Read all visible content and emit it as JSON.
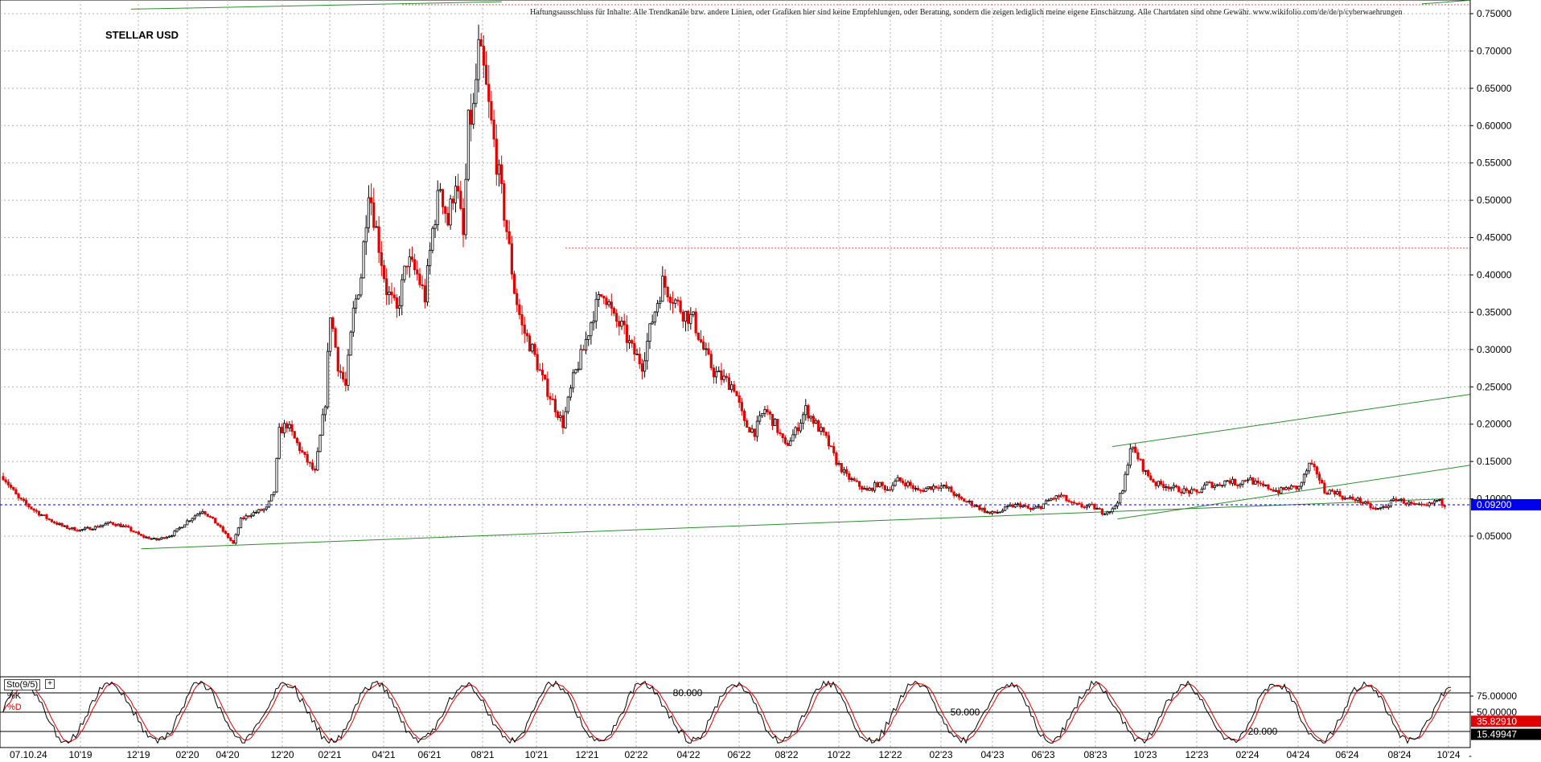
{
  "header": {
    "disclaimer": "Haftungsausschluss für Inhalte: Alle Trendkanäle bzw. andere Linien, oder Grafiken hier sind keine Empfehlungen, oder Beratung, sondern die zeigen lediglich meine eigene Einschätzung. Alle Chartdaten sind ohne Gewähr. www.wikifolio.com/de/de/p/cyberwaehrungen",
    "title": "STELLAR USD"
  },
  "colors": {
    "background": "#ffffff",
    "grid": "#b0b0b0",
    "up_candle": "#000000",
    "down_candle": "#e00000",
    "trendline": "#2e8b2e",
    "current_price_bg": "#0000ee",
    "current_price_line": "#0000ee",
    "stoch_k": "#000000",
    "stoch_d": "#e00000",
    "stoch_k_label_bg": "#e00000",
    "stoch_d_label_bg": "#000000",
    "resistance_line": "#e06060"
  },
  "chart_data": [
    {
      "type": "candlestick",
      "title": "STELLAR USD",
      "ylim": [
        0.025,
        0.765
      ],
      "y_ticks": [
        "0.75000",
        "0.70000",
        "0.65000",
        "0.60000",
        "0.55000",
        "0.50000",
        "0.45000",
        "0.40000",
        "0.35000",
        "0.30000",
        "0.25000",
        "0.20000",
        "0.15000",
        "0.10000",
        "0.05000"
      ],
      "x_ticks": [
        "07.10.24",
        "10'19",
        "12'19",
        "02'20",
        "04'20",
        "12'20",
        "02'21",
        "04'21",
        "06'21",
        "08'21",
        "10'21",
        "12'21",
        "02'22",
        "04'22",
        "06'22",
        "08'22",
        "10'22",
        "12'22",
        "02'23",
        "04'23",
        "06'23",
        "08'23",
        "10'23",
        "12'23",
        "02'24",
        "04'24",
        "06'24",
        "08'24",
        "10'24"
      ],
      "current_price": {
        "value": 0.092,
        "label": "0.09200"
      },
      "grid": true,
      "series_path_close": [
        [
          0,
          0.13
        ],
        [
          6,
          0.1
        ],
        [
          12,
          0.085
        ],
        [
          18,
          0.072
        ],
        [
          24,
          0.062
        ],
        [
          30,
          0.058
        ],
        [
          36,
          0.062
        ],
        [
          42,
          0.068
        ],
        [
          48,
          0.062
        ],
        [
          54,
          0.05
        ],
        [
          60,
          0.045
        ],
        [
          66,
          0.052
        ],
        [
          72,
          0.07
        ],
        [
          78,
          0.085
        ],
        [
          84,
          0.065
        ],
        [
          90,
          0.04
        ],
        [
          93,
          0.072
        ],
        [
          97,
          0.08
        ],
        [
          103,
          0.087
        ],
        [
          106,
          0.11
        ],
        [
          108,
          0.19
        ],
        [
          111,
          0.2
        ],
        [
          114,
          0.18
        ],
        [
          118,
          0.155
        ],
        [
          122,
          0.135
        ],
        [
          126,
          0.23
        ],
        [
          128,
          0.35
        ],
        [
          131,
          0.28
        ],
        [
          134,
          0.25
        ],
        [
          137,
          0.35
        ],
        [
          140,
          0.4
        ],
        [
          143,
          0.52
        ],
        [
          146,
          0.46
        ],
        [
          150,
          0.38
        ],
        [
          154,
          0.35
        ],
        [
          158,
          0.42
        ],
        [
          162,
          0.4
        ],
        [
          165,
          0.37
        ],
        [
          168,
          0.46
        ],
        [
          171,
          0.52
        ],
        [
          174,
          0.47
        ],
        [
          177,
          0.53
        ],
        [
          180,
          0.45
        ],
        [
          182,
          0.6
        ],
        [
          184,
          0.62
        ],
        [
          186,
          0.7
        ],
        [
          188,
          0.67
        ],
        [
          191,
          0.6
        ],
        [
          194,
          0.53
        ],
        [
          197,
          0.46
        ],
        [
          200,
          0.38
        ],
        [
          203,
          0.33
        ],
        [
          207,
          0.3
        ],
        [
          211,
          0.26
        ],
        [
          215,
          0.23
        ],
        [
          219,
          0.2
        ],
        [
          223,
          0.26
        ],
        [
          227,
          0.3
        ],
        [
          231,
          0.35
        ],
        [
          235,
          0.38
        ],
        [
          239,
          0.34
        ],
        [
          242,
          0.33
        ],
        [
          246,
          0.3
        ],
        [
          250,
          0.28
        ],
        [
          254,
          0.34
        ],
        [
          258,
          0.39
        ],
        [
          262,
          0.37
        ],
        [
          266,
          0.35
        ],
        [
          270,
          0.34
        ],
        [
          274,
          0.3
        ],
        [
          278,
          0.27
        ],
        [
          282,
          0.26
        ],
        [
          286,
          0.25
        ],
        [
          290,
          0.2
        ],
        [
          294,
          0.19
        ],
        [
          298,
          0.22
        ],
        [
          302,
          0.2
        ],
        [
          306,
          0.17
        ],
        [
          310,
          0.19
        ],
        [
          314,
          0.22
        ],
        [
          318,
          0.2
        ],
        [
          322,
          0.18
        ],
        [
          326,
          0.15
        ],
        [
          330,
          0.13
        ],
        [
          334,
          0.12
        ],
        [
          338,
          0.11
        ],
        [
          342,
          0.12
        ],
        [
          346,
          0.113
        ],
        [
          350,
          0.125
        ],
        [
          354,
          0.12
        ],
        [
          358,
          0.11
        ],
        [
          362,
          0.115
        ],
        [
          366,
          0.118
        ],
        [
          370,
          0.113
        ],
        [
          374,
          0.1
        ],
        [
          378,
          0.095
        ],
        [
          382,
          0.088
        ],
        [
          386,
          0.08
        ],
        [
          390,
          0.083
        ],
        [
          394,
          0.09
        ],
        [
          398,
          0.092
        ],
        [
          402,
          0.085
        ],
        [
          406,
          0.09
        ],
        [
          410,
          0.1
        ],
        [
          414,
          0.104
        ],
        [
          418,
          0.093
        ],
        [
          422,
          0.09
        ],
        [
          426,
          0.09
        ],
        [
          430,
          0.082
        ],
        [
          434,
          0.085
        ],
        [
          438,
          0.11
        ],
        [
          441,
          0.17
        ],
        [
          444,
          0.155
        ],
        [
          447,
          0.135
        ],
        [
          451,
          0.12
        ],
        [
          455,
          0.118
        ],
        [
          459,
          0.113
        ],
        [
          463,
          0.11
        ],
        [
          467,
          0.108
        ],
        [
          471,
          0.12
        ],
        [
          475,
          0.118
        ],
        [
          479,
          0.125
        ],
        [
          483,
          0.12
        ],
        [
          487,
          0.128
        ],
        [
          491,
          0.118
        ],
        [
          495,
          0.115
        ],
        [
          499,
          0.11
        ],
        [
          503,
          0.115
        ],
        [
          507,
          0.115
        ],
        [
          511,
          0.145
        ],
        [
          514,
          0.135
        ],
        [
          517,
          0.11
        ],
        [
          521,
          0.11
        ],
        [
          525,
          0.1
        ],
        [
          529,
          0.1
        ],
        [
          533,
          0.093
        ],
        [
          537,
          0.085
        ],
        [
          541,
          0.09
        ],
        [
          545,
          0.1
        ],
        [
          549,
          0.095
        ],
        [
          553,
          0.09
        ],
        [
          557,
          0.09
        ],
        [
          561,
          0.098
        ],
        [
          564,
          0.092
        ]
      ],
      "trendlines": [
        {
          "name": "long-support",
          "x1": 54,
          "y1": 0.033,
          "x2": 564,
          "y2": 0.1
        },
        {
          "name": "channel-lower",
          "x1": 436,
          "y1": 0.073,
          "x2": 574,
          "y2": 0.145
        },
        {
          "name": "channel-upper",
          "x1": 434,
          "y1": 0.17,
          "x2": 574,
          "y2": 0.24
        },
        {
          "name": "top-line",
          "x1": 50,
          "y1": 0.756,
          "x2": 195,
          "y2": 0.766
        },
        {
          "name": "top-line-2",
          "x1": 555,
          "y1": 0.763,
          "x2": 574,
          "y2": 0.768
        }
      ],
      "resistance": [
        {
          "name": "0.44 line",
          "y": 0.436,
          "x1": 220,
          "x2": 574
        }
      ]
    },
    {
      "type": "line",
      "title": "Sto(9/5)",
      "legend": [
        "%K",
        "%D"
      ],
      "ylim": [
        0,
        100
      ],
      "levels": [
        {
          "value": 80,
          "label": "80.000"
        },
        {
          "value": 50,
          "label": "50.000"
        },
        {
          "value": 20,
          "label": "20.000"
        }
      ],
      "y_ticks": [
        "75.00000",
        "50.00000"
      ],
      "last_values": {
        "K": "35.82910",
        "D": "15.49947"
      }
    }
  ]
}
